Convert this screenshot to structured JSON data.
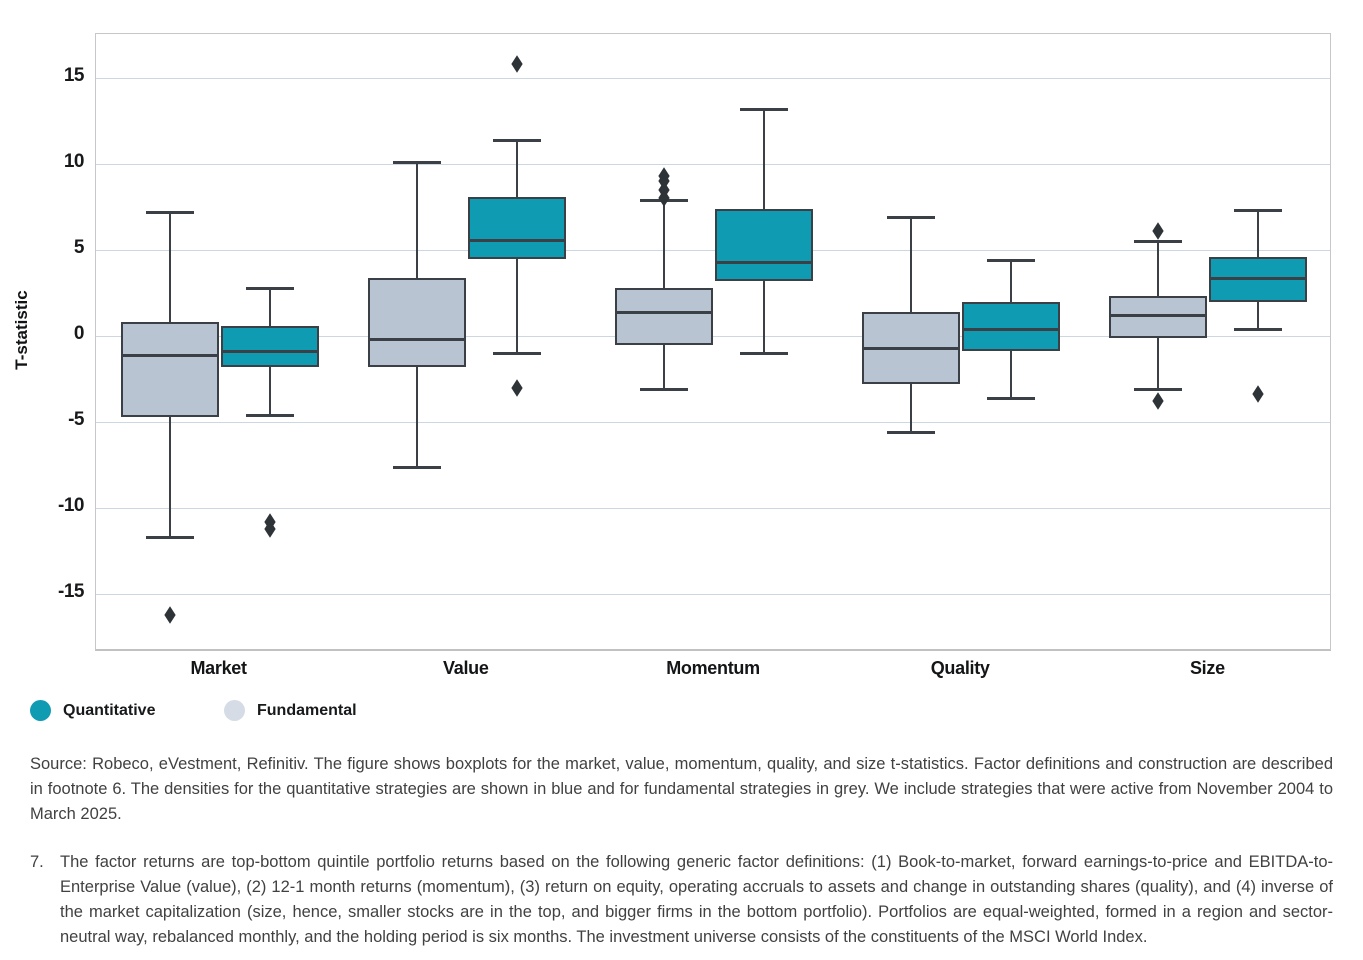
{
  "colors": {
    "quantitative": "#0f9bb2",
    "fundamental": "#b9c4d2",
    "box_border": "#3a4045",
    "outlier": "#2e3338",
    "gridline": "#ccd7e2",
    "plot_border": "#c5c7c9",
    "text_dark": "#17191b",
    "footer_text": "#414141"
  },
  "chart_data": {
    "type": "boxplot",
    "title": "",
    "xlabel": "",
    "ylabel": "T-statistic",
    "categories": [
      "Market",
      "Value",
      "Momentum",
      "Quality",
      "Size"
    ],
    "yticks": [
      15,
      10,
      5,
      0,
      -5,
      -10,
      -15
    ],
    "ylim": [
      -18.4,
      17.6
    ],
    "grid": "horizontal",
    "legend_position": "bottom-left",
    "series": [
      {
        "name": "Fundamental",
        "color": "#b9c4d2",
        "boxes": [
          {
            "category": "Market",
            "whisker_low": -11.7,
            "q1": -4.7,
            "median": -1.1,
            "q3": 0.8,
            "whisker_high": 7.2,
            "outliers": [
              -16.2
            ]
          },
          {
            "category": "Value",
            "whisker_low": -7.6,
            "q1": -1.8,
            "median": -0.2,
            "q3": 3.4,
            "whisker_high": 10.1,
            "outliers": []
          },
          {
            "category": "Momentum",
            "whisker_low": -3.1,
            "q1": -0.5,
            "median": 1.4,
            "q3": 2.8,
            "whisker_high": 7.9,
            "outliers": [
              8.0,
              8.5,
              9.0,
              9.3
            ]
          },
          {
            "category": "Quality",
            "whisker_low": -5.6,
            "q1": -2.8,
            "median": -0.7,
            "q3": 1.4,
            "whisker_high": 6.9,
            "outliers": []
          },
          {
            "category": "Size",
            "whisker_low": -3.1,
            "q1": -0.1,
            "median": 1.2,
            "q3": 2.3,
            "whisker_high": 5.5,
            "outliers": [
              6.1,
              -3.8
            ]
          }
        ]
      },
      {
        "name": "Quantitative",
        "color": "#0f9bb2",
        "boxes": [
          {
            "category": "Market",
            "whisker_low": -4.6,
            "q1": -1.8,
            "median": -0.9,
            "q3": 0.6,
            "whisker_high": 2.8,
            "outliers": [
              -10.8,
              -11.2
            ]
          },
          {
            "category": "Value",
            "whisker_low": -1.0,
            "q1": 4.5,
            "median": 5.6,
            "q3": 8.1,
            "whisker_high": 11.4,
            "outliers": [
              15.8,
              -3.0
            ]
          },
          {
            "category": "Momentum",
            "whisker_low": -1.0,
            "q1": 3.2,
            "median": 4.3,
            "q3": 7.4,
            "whisker_high": 13.2,
            "outliers": []
          },
          {
            "category": "Quality",
            "whisker_low": -3.6,
            "q1": -0.9,
            "median": 0.4,
            "q3": 2.0,
            "whisker_high": 4.4,
            "outliers": []
          },
          {
            "category": "Size",
            "whisker_low": 0.4,
            "q1": 2.0,
            "median": 3.4,
            "q3": 4.6,
            "whisker_high": 7.3,
            "outliers": [
              -3.4
            ]
          }
        ]
      }
    ]
  },
  "legend": {
    "items": [
      {
        "label": "Quantitative",
        "color": "#0f9bb2"
      },
      {
        "label": "Fundamental",
        "color": "#d5dce5"
      }
    ]
  },
  "footer": {
    "source_text": "Source: Robeco, eVestment, Refinitiv. The figure shows boxplots for the market, value, momentum, quality, and size t-statistics. Factor definitions and construction are described in footnote 6. The densities for the quantitative strategies are shown in blue and for fundamental strategies in grey. We include strategies that were active from November 2004 to March 2025.",
    "footnote_number": "7.",
    "footnote_text": "The factor returns are top-bottom quintile portfolio returns based on the following generic factor definitions: (1) Book-to-market, forward earnings-to-price and EBITDA-to-Enterprise Value (value), (2) 12-1 month returns (momentum), (3) return on equity, operating accruals to assets and change in outstanding shares (quality), and (4) inverse of the market capitalization (size, hence, smaller stocks are in the top, and bigger firms in the bottom portfolio). Portfolios are equal-weighted, formed in a region and sector-neutral way, rebalanced monthly, and the holding period is six months. The investment universe consists of the constituents of the MSCI World Index."
  }
}
